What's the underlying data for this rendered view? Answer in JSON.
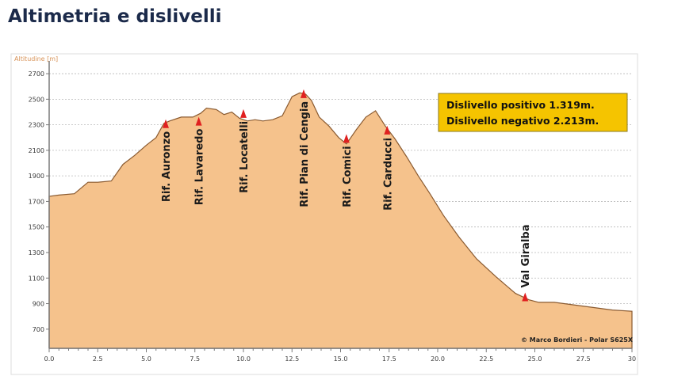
{
  "page": {
    "title": "Altimetria e dislivelli"
  },
  "chart_data": {
    "type": "area",
    "ylabel": "Altitudine [m]",
    "xlim": [
      0,
      30
    ],
    "ylim": [
      550,
      2750
    ],
    "x_ticks": [
      "0.0",
      "2.5",
      "5.0",
      "7.5",
      "10.0",
      "12.5",
      "15.0",
      "17.5",
      "20.0",
      "22.5",
      "25.0",
      "27.5",
      "30"
    ],
    "x_tick_values": [
      0,
      2.5,
      5,
      7.5,
      10,
      12.5,
      15,
      17.5,
      20,
      22.5,
      25,
      27.5,
      30
    ],
    "y_ticks": [
      "2700",
      "2500",
      "2300",
      "2100",
      "1900",
      "1700",
      "1500",
      "1300",
      "1100",
      "900",
      "700"
    ],
    "y_tick_values": [
      2700,
      2500,
      2300,
      2100,
      1900,
      1700,
      1500,
      1300,
      1100,
      900,
      700
    ],
    "grid": true,
    "colors": {
      "area_fill": "#f5c28c",
      "area_stroke": "#8a5a30",
      "marker": "#e02020",
      "callout_bg": "#f5c400",
      "axis": "#7a7a7a",
      "grid": "#b8b8b8",
      "ylabel": "#d8945a"
    },
    "series": [
      {
        "x": [
          0,
          0.5,
          1.3,
          2.0,
          2.5,
          3.2,
          3.8,
          4.4,
          5.0,
          5.5,
          5.9,
          6.2,
          6.8,
          7.4,
          7.8,
          8.1,
          8.6,
          9.0,
          9.4,
          9.8,
          10.2,
          10.6,
          11.0,
          11.5,
          12.0,
          12.5,
          12.9,
          13.2,
          13.5,
          13.9,
          14.4,
          14.9,
          15.3,
          15.8,
          16.3,
          16.8,
          17.3,
          17.8,
          18.4,
          19.0,
          19.6,
          20.3,
          21.1,
          22.0,
          23.0,
          24.0,
          24.7,
          25.2,
          26.0,
          27.0,
          28.0,
          29.0,
          30.0
        ],
        "y": [
          1740,
          1750,
          1760,
          1850,
          1850,
          1860,
          1990,
          2060,
          2140,
          2200,
          2310,
          2330,
          2360,
          2360,
          2390,
          2430,
          2420,
          2380,
          2400,
          2350,
          2330,
          2340,
          2330,
          2340,
          2370,
          2520,
          2550,
          2540,
          2490,
          2360,
          2290,
          2200,
          2150,
          2260,
          2360,
          2410,
          2290,
          2190,
          2050,
          1900,
          1760,
          1590,
          1420,
          1250,
          1110,
          980,
          930,
          910,
          910,
          890,
          870,
          850,
          840
        ]
      }
    ],
    "markers": [
      {
        "label": "Rif. Auronzo",
        "x": 6.0,
        "y": 2305
      },
      {
        "label": "Rif. Lavaredo",
        "x": 7.7,
        "y": 2325
      },
      {
        "label": "Rif. Locatelli",
        "x": 10.0,
        "y": 2385
      },
      {
        "label": "Rif. Pian di Cengia",
        "x": 13.1,
        "y": 2540
      },
      {
        "label": "Rif. Comici",
        "x": 15.3,
        "y": 2190
      },
      {
        "label": "Rif. Carducci",
        "x": 17.4,
        "y": 2255
      },
      {
        "label": "Val Giralba",
        "x": 24.5,
        "y": 950
      }
    ],
    "callout": {
      "lines": [
        "Dislivello positivo  1.319m.",
        "Dislivello negativo 2.213m."
      ]
    },
    "credit": "© Marco Bordieri  -  Polar S625X"
  }
}
